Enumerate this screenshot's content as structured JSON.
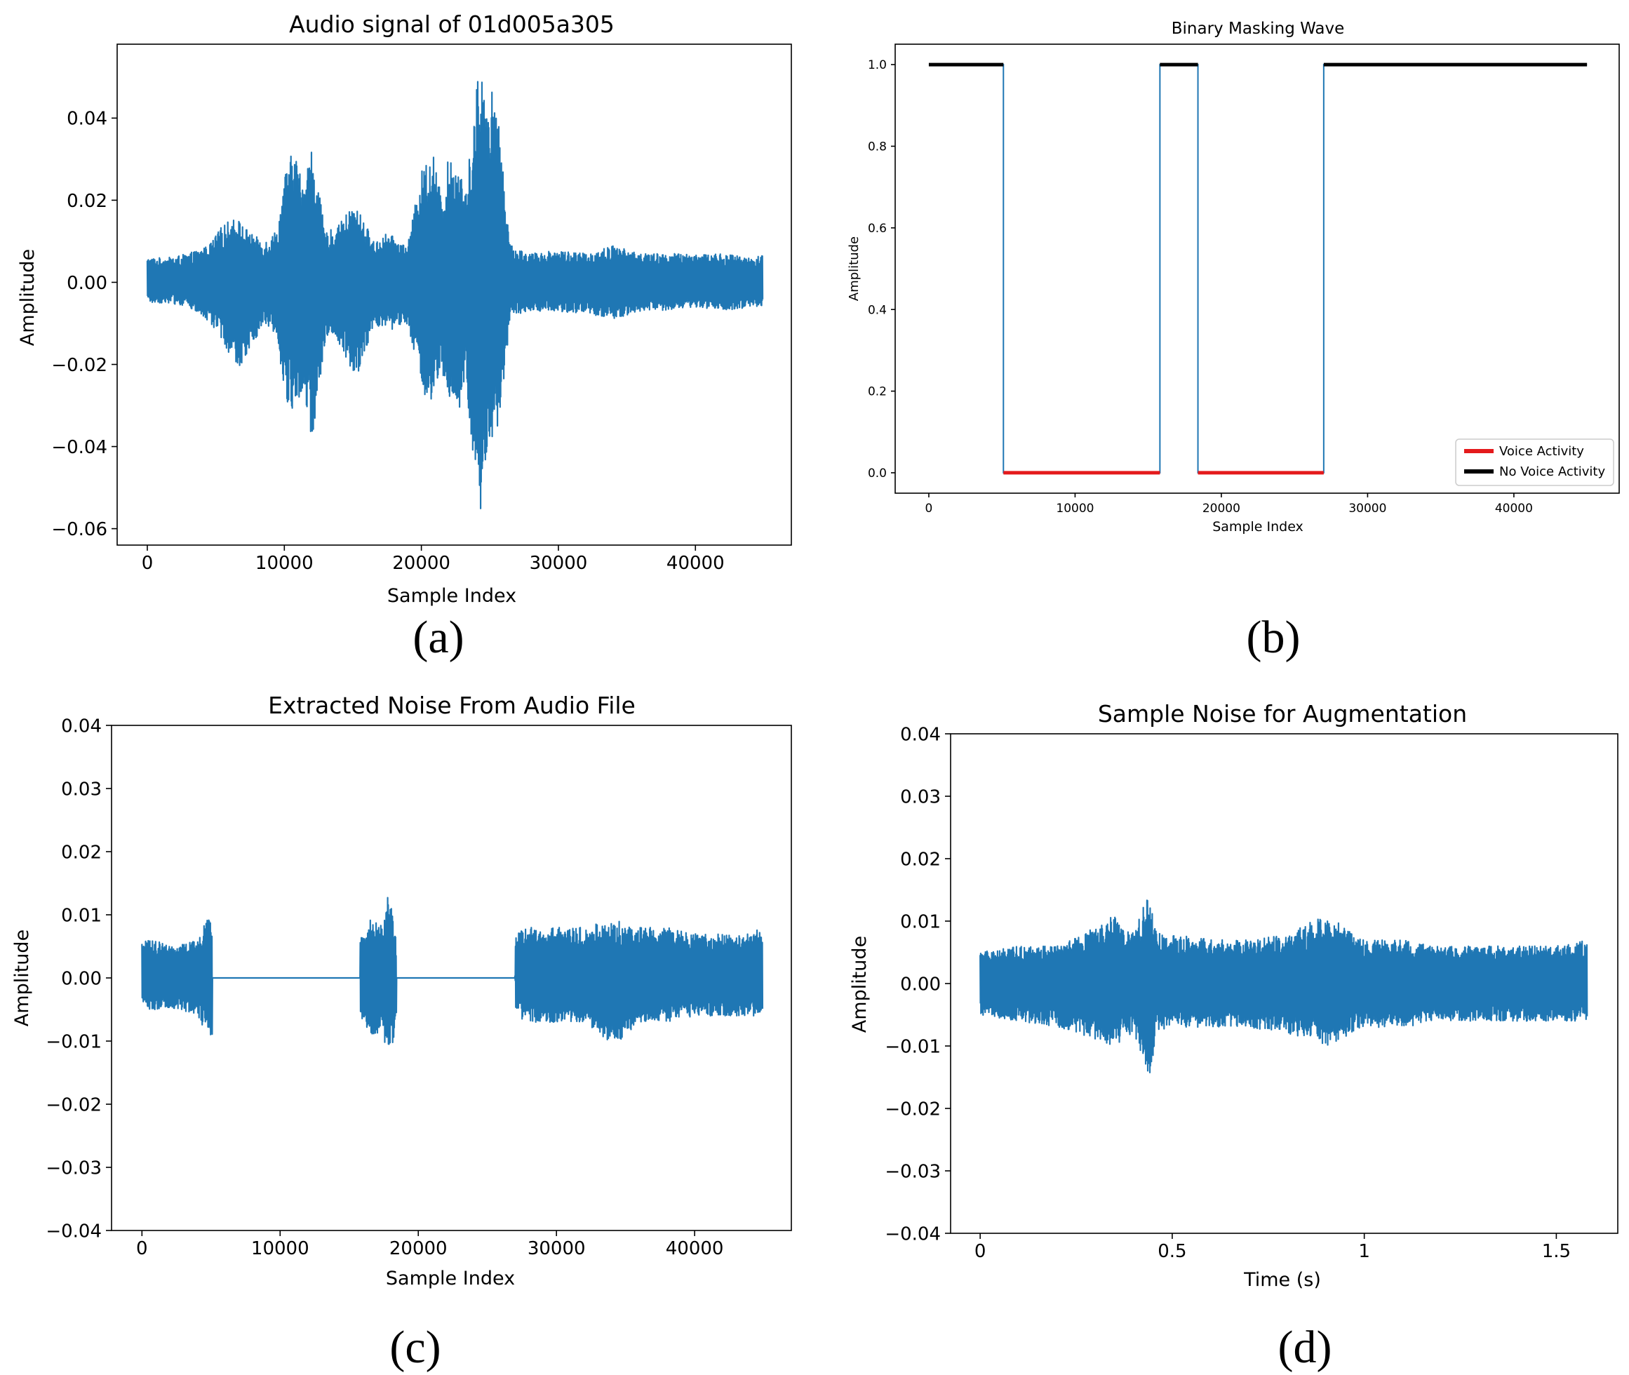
{
  "colors": {
    "signal": "#1f77b4",
    "voice": "#e41a1c",
    "no_voice": "#000000"
  },
  "chart_data": [
    {
      "type": "line",
      "title": "Audio signal of 01d005a305",
      "xlabel": "Sample Index",
      "ylabel": "Amplitude",
      "caption": "(a)",
      "xlim": [
        -2200,
        47000
      ],
      "ylim": [
        -0.064,
        0.058
      ],
      "xticks": [
        0,
        10000,
        20000,
        30000,
        40000
      ],
      "xtick_labels": [
        "0",
        "10000",
        "20000",
        "30000",
        "40000"
      ],
      "yticks": [
        -0.06,
        -0.04,
        -0.02,
        0.0,
        0.02,
        0.04
      ],
      "ytick_labels": [
        "−0.06",
        "−0.04",
        "−0.02",
        "0.00",
        "0.02",
        "0.04"
      ],
      "grid": false,
      "series_envelope": {
        "x": [
          0,
          1500,
          3000,
          4500,
          5500,
          6500,
          7500,
          8500,
          9500,
          10000,
          10700,
          11300,
          12000,
          13000,
          14000,
          15000,
          15700,
          16500,
          17500,
          19000,
          20000,
          20800,
          21500,
          22000,
          22700,
          23200,
          23800,
          24200,
          24700,
          25200,
          25800,
          26500,
          28000,
          30000,
          32000,
          34000,
          36000,
          38000,
          40000,
          42000,
          44000,
          44900
        ],
        "upper": [
          0.006,
          0.006,
          0.007,
          0.009,
          0.014,
          0.016,
          0.012,
          0.01,
          0.013,
          0.026,
          0.033,
          0.025,
          0.033,
          0.012,
          0.014,
          0.019,
          0.016,
          0.01,
          0.012,
          0.009,
          0.027,
          0.033,
          0.02,
          0.031,
          0.03,
          0.021,
          0.04,
          0.054,
          0.048,
          0.047,
          0.035,
          0.009,
          0.007,
          0.008,
          0.007,
          0.009,
          0.007,
          0.007,
          0.007,
          0.007,
          0.006,
          0.007
        ],
        "lower": [
          -0.005,
          -0.005,
          -0.006,
          -0.01,
          -0.014,
          -0.022,
          -0.016,
          -0.01,
          -0.013,
          -0.029,
          -0.033,
          -0.026,
          -0.04,
          -0.013,
          -0.015,
          -0.024,
          -0.02,
          -0.01,
          -0.012,
          -0.01,
          -0.026,
          -0.032,
          -0.022,
          -0.03,
          -0.033,
          -0.025,
          -0.044,
          -0.06,
          -0.046,
          -0.042,
          -0.03,
          -0.008,
          -0.007,
          -0.007,
          -0.008,
          -0.009,
          -0.007,
          -0.007,
          -0.006,
          -0.007,
          -0.006,
          -0.006
        ]
      }
    },
    {
      "type": "line",
      "title": "Binary Masking Wave",
      "xlabel": "Sample Index",
      "ylabel": "Amplitude",
      "caption": "(b)",
      "xlim": [
        -2300,
        47200
      ],
      "ylim": [
        -0.05,
        1.05
      ],
      "xticks": [
        0,
        10000,
        20000,
        30000,
        40000
      ],
      "xtick_labels": [
        "0",
        "10000",
        "20000",
        "30000",
        "40000"
      ],
      "yticks": [
        0.0,
        0.2,
        0.4,
        0.6,
        0.8,
        1.0
      ],
      "ytick_labels": [
        "0.0",
        "0.2",
        "0.4",
        "0.6",
        "0.8",
        "1.0"
      ],
      "grid": false,
      "legend_position": "lower-right",
      "legend": [
        "Voice Activity",
        "No Voice Activity"
      ],
      "step_x": [
        0,
        5100,
        5100,
        15800,
        15800,
        18400,
        18400,
        27000,
        27000,
        45000
      ],
      "step_y": [
        1,
        1,
        0,
        0,
        1,
        1,
        0,
        0,
        1,
        1
      ],
      "voice_segments": [
        [
          5100,
          15800
        ],
        [
          18400,
          27000
        ]
      ],
      "no_voice_segments": [
        [
          0,
          5100
        ],
        [
          15800,
          18400
        ],
        [
          27000,
          45000
        ]
      ]
    },
    {
      "type": "line",
      "title": "Extracted Noise From Audio File",
      "xlabel": "Sample Index",
      "ylabel": "Amplitude",
      "caption": "(c)",
      "xlim": [
        -2200,
        47000
      ],
      "ylim": [
        -0.04,
        0.04
      ],
      "xticks": [
        0,
        10000,
        20000,
        30000,
        40000
      ],
      "xtick_labels": [
        "0",
        "10000",
        "20000",
        "30000",
        "40000"
      ],
      "yticks": [
        -0.04,
        -0.03,
        -0.02,
        -0.01,
        0.0,
        0.01,
        0.02,
        0.03,
        0.04
      ],
      "ytick_labels": [
        "−0.04",
        "−0.03",
        "−0.02",
        "−0.01",
        "0.00",
        "0.01",
        "0.02",
        "0.03",
        "0.04"
      ],
      "grid": false,
      "series_envelope": {
        "x": [
          0,
          1000,
          2500,
          4000,
          4700,
          5100,
          5101,
          15799,
          15800,
          16500,
          17500,
          17800,
          18200,
          18400,
          18401,
          26999,
          27000,
          28000,
          30000,
          32000,
          33500,
          34500,
          36000,
          38000,
          40000,
          42000,
          44000,
          44900
        ],
        "upper": [
          0.006,
          0.006,
          0.005,
          0.006,
          0.01,
          0.008,
          0.0,
          0.0,
          0.006,
          0.01,
          0.008,
          0.015,
          0.009,
          0.006,
          0.0,
          0.0,
          0.007,
          0.008,
          0.008,
          0.008,
          0.009,
          0.009,
          0.008,
          0.008,
          0.007,
          0.007,
          0.007,
          0.008
        ],
        "lower": [
          -0.005,
          -0.005,
          -0.005,
          -0.006,
          -0.009,
          -0.011,
          0.0,
          0.0,
          -0.006,
          -0.009,
          -0.01,
          -0.012,
          -0.01,
          -0.006,
          0.0,
          0.0,
          -0.006,
          -0.007,
          -0.007,
          -0.007,
          -0.01,
          -0.01,
          -0.007,
          -0.007,
          -0.006,
          -0.006,
          -0.006,
          -0.006
        ]
      }
    },
    {
      "type": "line",
      "title": "Sample Noise for Augmentation",
      "xlabel": "Time (s)",
      "ylabel": "Amplitude",
      "caption": "(d)",
      "xlim": [
        -0.077,
        1.66
      ],
      "ylim": [
        -0.04,
        0.04
      ],
      "xticks": [
        0,
        0.5,
        1,
        1.5
      ],
      "xtick_labels": [
        "0",
        "0.5",
        "1",
        "1.5"
      ],
      "yticks": [
        -0.04,
        -0.03,
        -0.02,
        -0.01,
        0.0,
        0.01,
        0.02,
        0.03,
        0.04
      ],
      "ytick_labels": [
        "−0.04",
        "−0.03",
        "−0.02",
        "−0.01",
        "0.00",
        "0.01",
        "0.02",
        "0.03",
        "0.04"
      ],
      "grid": false,
      "series_envelope": {
        "x": [
          0,
          0.1,
          0.2,
          0.3,
          0.35,
          0.4,
          0.44,
          0.46,
          0.5,
          0.6,
          0.7,
          0.8,
          0.9,
          1.0,
          1.1,
          1.2,
          1.3,
          1.4,
          1.5,
          1.58
        ],
        "upper": [
          0.005,
          0.006,
          0.006,
          0.009,
          0.011,
          0.008,
          0.015,
          0.008,
          0.008,
          0.007,
          0.007,
          0.008,
          0.011,
          0.007,
          0.007,
          0.006,
          0.006,
          0.006,
          0.006,
          0.007
        ],
        "lower": [
          -0.005,
          -0.006,
          -0.007,
          -0.009,
          -0.01,
          -0.008,
          -0.015,
          -0.008,
          -0.007,
          -0.007,
          -0.007,
          -0.008,
          -0.01,
          -0.007,
          -0.007,
          -0.006,
          -0.006,
          -0.006,
          -0.006,
          -0.006
        ]
      }
    }
  ]
}
